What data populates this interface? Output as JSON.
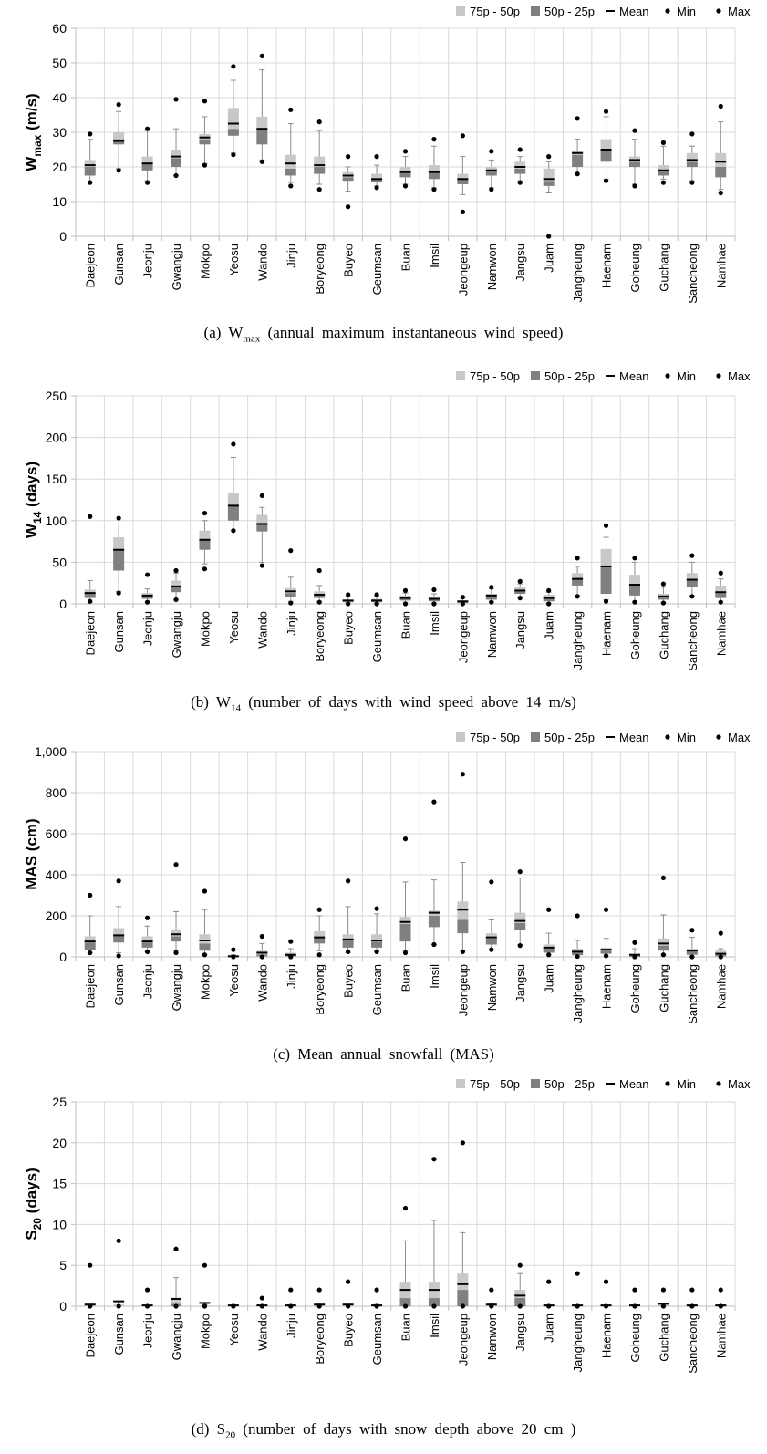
{
  "legend_labels": [
    "75p - 50p",
    "50p - 25p",
    "Mean",
    "Min",
    "Max"
  ],
  "colors": {
    "upper_box": "#c8c8c8",
    "lower_box": "#808080",
    "mean": "#000000",
    "marker": "#000000",
    "grid": "#d9d9d9",
    "axis": "#bfbfbf"
  },
  "chart_data": [
    {
      "type": "box",
      "ylabel_main": "W",
      "ylabel_sub": "max",
      "ylabel_tail": " (m/s)",
      "ylim": [
        0,
        60
      ],
      "yticks": [
        "0",
        "10",
        "20",
        "30",
        "40",
        "50",
        "60"
      ],
      "caption_prefix": "(a)  W",
      "caption_sub": "max",
      "caption_rest": " (annual maximum instantaneous wind speed)",
      "categories": [
        "Daejeon",
        "Gunsan",
        "Jeonju",
        "Gwangju",
        "Mokpo",
        "Yeosu",
        "Wando",
        "Jinju",
        "Boryeong",
        "Buyeo",
        "Geumsan",
        "Buan",
        "Imsil",
        "Jeongeup",
        "Namwon",
        "Jangsu",
        "Juam",
        "Jangheung",
        "Haenam",
        "Goheung",
        "Guchang",
        "Sancheong",
        "Namhae"
      ],
      "q1": [
        17.5,
        26.5,
        19,
        20,
        26.5,
        29,
        26.5,
        17.5,
        18,
        16,
        15.5,
        17,
        16.5,
        15,
        17.5,
        18,
        14.5,
        20,
        21.5,
        20,
        17.5,
        20,
        17
      ],
      "median": [
        20,
        28,
        21,
        22.5,
        28,
        31,
        31,
        19.5,
        20,
        17,
        16.5,
        18.5,
        18.5,
        16.5,
        19,
        19.5,
        16,
        23.5,
        25,
        21.5,
        19,
        21.5,
        20
      ],
      "q3": [
        22,
        30,
        23,
        25,
        29.5,
        37,
        34.5,
        23.5,
        23,
        18.5,
        18,
        20,
        20.5,
        18,
        20,
        21.5,
        19.5,
        24.5,
        28,
        23,
        20.5,
        24,
        24
      ],
      "whisker_low": [
        15.5,
        19.5,
        16,
        17.5,
        21,
        24,
        22,
        15.5,
        15,
        13,
        14.5,
        15,
        14,
        12,
        14,
        16,
        12.5,
        18,
        16.5,
        15,
        16.5,
        16,
        13.5
      ],
      "whisker_high": [
        28,
        36,
        30.5,
        31,
        34.5,
        45,
        48,
        32.5,
        30.5,
        20,
        20.5,
        23,
        26,
        23,
        22,
        23,
        21.5,
        28,
        34.5,
        28,
        26,
        26,
        33
      ],
      "mean": [
        20.5,
        27.5,
        21,
        23,
        28.5,
        32.5,
        31,
        21,
        20.5,
        17.5,
        16.5,
        18.5,
        18.5,
        16.5,
        19,
        20,
        16.5,
        24,
        25,
        22,
        19,
        22,
        21.5
      ],
      "min": [
        15.5,
        19,
        15.5,
        17.5,
        20.5,
        23.5,
        21.5,
        14.5,
        13.5,
        8.5,
        14,
        14.5,
        13.5,
        7,
        13.5,
        15.5,
        0,
        18,
        16,
        14.5,
        15.5,
        15.5,
        12.5
      ],
      "max": [
        29.5,
        38,
        31,
        39.5,
        39,
        49,
        52,
        36.5,
        33,
        23,
        23,
        24.5,
        28,
        29,
        24.5,
        25,
        23,
        34,
        36,
        30.5,
        27,
        29.5,
        37.5
      ]
    },
    {
      "type": "box",
      "ylabel_main": "W",
      "ylabel_sub": "14",
      "ylabel_tail": " (days)",
      "ylim": [
        0,
        250
      ],
      "yticks": [
        "0",
        "50",
        "100",
        "150",
        "200",
        "250"
      ],
      "caption_prefix": "(b)  W",
      "caption_sub": "14",
      "caption_rest": " (number of days with wind speed above 14 m/s)",
      "categories": [
        "Daejeon",
        "Gunsan",
        "Jeonju",
        "Gwangju",
        "Mokpo",
        "Yeosu",
        "Wando",
        "Jinju",
        "Boryeong",
        "Buyeo",
        "Geumsan",
        "Buan",
        "Imsil",
        "Jeongeup",
        "Namwon",
        "Jangsu",
        "Juam",
        "Jangheung",
        "Haenam",
        "Goheung",
        "Guchang",
        "Sancheong",
        "Namhae"
      ],
      "q1": [
        7,
        40,
        6,
        14,
        65,
        100,
        87,
        8,
        7,
        2,
        2,
        4,
        3,
        1,
        5,
        12,
        3,
        22,
        12,
        10,
        5,
        20,
        7
      ],
      "median": [
        12,
        65,
        10,
        20,
        78,
        118,
        97,
        13,
        10,
        3,
        3,
        6,
        5,
        2,
        8,
        16,
        7,
        30,
        45,
        22,
        8,
        30,
        13
      ],
      "q3": [
        17,
        80,
        13,
        28,
        88,
        133,
        107,
        19,
        15,
        5,
        6,
        10,
        9,
        4,
        12,
        20,
        11,
        37,
        66,
        35,
        12,
        37,
        22
      ],
      "whisker_low": [
        2,
        15,
        3,
        5,
        48,
        88,
        50,
        3,
        3,
        1,
        1,
        2,
        1,
        0,
        3,
        8,
        1,
        10,
        5,
        3,
        2,
        10,
        3
      ],
      "whisker_high": [
        28,
        96,
        18,
        37,
        100,
        176,
        116,
        32,
        22,
        9,
        9,
        13,
        12,
        7,
        18,
        24,
        14,
        45,
        80,
        50,
        20,
        50,
        30
      ],
      "mean": [
        13,
        65,
        10,
        21,
        77,
        118,
        96,
        15,
        11,
        4,
        4,
        7,
        6,
        3,
        10,
        16,
        7,
        30,
        45,
        23,
        9,
        29,
        14
      ],
      "min": [
        3,
        13,
        2,
        5,
        42,
        88,
        46,
        1,
        2,
        0,
        0,
        0,
        0,
        0,
        2,
        7,
        0,
        9,
        3,
        2,
        1,
        9,
        2
      ],
      "max": [
        105,
        103,
        35,
        40,
        109,
        192,
        130,
        64,
        40,
        11,
        11,
        16,
        17,
        8,
        20,
        27,
        16,
        55,
        94,
        55,
        24,
        58,
        37
      ]
    },
    {
      "type": "box",
      "ylabel_main": "MAS",
      "ylabel_sub": "",
      "ylabel_tail": " (cm)",
      "ylim": [
        0,
        1000
      ],
      "yticks": [
        "0",
        "200",
        "400",
        "600",
        "800",
        "1,000"
      ],
      "caption_prefix": "(c)  Mean annual snowfall (MAS)",
      "caption_sub": "",
      "caption_rest": "",
      "categories": [
        "Daejeon",
        "Gunsan",
        "Jeonju",
        "Gwangju",
        "Mokpo",
        "Yeosu",
        "Wando",
        "Jinju",
        "Boryeong",
        "Buyeo",
        "Geumsan",
        "Buan",
        "Imsil",
        "Jeongeup",
        "Namwon",
        "Jangsu",
        "Juam",
        "Jangheung",
        "Haenam",
        "Goheung",
        "Guchang",
        "Sancheong",
        "Namhae"
      ],
      "q1": [
        35,
        70,
        45,
        75,
        30,
        0,
        3,
        3,
        65,
        45,
        45,
        75,
        145,
        115,
        60,
        130,
        20,
        8,
        15,
        0,
        30,
        10,
        3
      ],
      "median": [
        70,
        105,
        70,
        100,
        65,
        2,
        12,
        8,
        95,
        80,
        75,
        160,
        200,
        180,
        90,
        165,
        40,
        20,
        30,
        5,
        55,
        25,
        10
      ],
      "q3": [
        100,
        140,
        100,
        135,
        110,
        5,
        30,
        20,
        125,
        110,
        110,
        195,
        225,
        270,
        115,
        215,
        60,
        40,
        45,
        15,
        90,
        40,
        30
      ],
      "whisker_low": [
        20,
        20,
        25,
        30,
        10,
        0,
        0,
        0,
        30,
        20,
        25,
        30,
        60,
        30,
        35,
        60,
        10,
        0,
        5,
        0,
        10,
        0,
        0
      ],
      "whisker_high": [
        200,
        245,
        150,
        220,
        230,
        10,
        65,
        40,
        200,
        245,
        210,
        365,
        375,
        460,
        180,
        385,
        115,
        80,
        90,
        40,
        205,
        95,
        40
      ],
      "mean": [
        75,
        105,
        75,
        110,
        80,
        3,
        20,
        10,
        95,
        85,
        80,
        170,
        215,
        230,
        95,
        175,
        45,
        25,
        35,
        10,
        65,
        30,
        15
      ],
      "min": [
        20,
        5,
        25,
        20,
        10,
        0,
        0,
        0,
        10,
        25,
        25,
        20,
        60,
        25,
        35,
        55,
        10,
        2,
        5,
        0,
        10,
        0,
        0
      ],
      "max": [
        300,
        370,
        190,
        450,
        320,
        35,
        100,
        75,
        230,
        370,
        235,
        575,
        755,
        890,
        365,
        415,
        230,
        200,
        230,
        70,
        385,
        130,
        115
      ]
    },
    {
      "type": "box",
      "ylabel_main": "S",
      "ylabel_sub": "20",
      "ylabel_tail": " (days)",
      "ylim": [
        0,
        25
      ],
      "yticks": [
        "0",
        "5",
        "10",
        "15",
        "20",
        "25"
      ],
      "caption_prefix": "(d)  S",
      "caption_sub": "20",
      "caption_rest": " (number of days with snow depth above 20 cm )",
      "categories": [
        "Daejeon",
        "Gunsan",
        "Jeonju",
        "Gwangju",
        "Mokpo",
        "Yeosu",
        "Wando",
        "Jinju",
        "Boryeong",
        "Buyeo",
        "Geumsan",
        "Buan",
        "Imsil",
        "Jeongeup",
        "Namwon",
        "Jangsu",
        "Juam",
        "Jangheung",
        "Haenam",
        "Goheung",
        "Guchang",
        "Sancheong",
        "Namhae"
      ],
      "q1": [
        0,
        0,
        0,
        0,
        0,
        0,
        0,
        0,
        0,
        0,
        0,
        0,
        0,
        0,
        0,
        0,
        0,
        0,
        0,
        0,
        0,
        0,
        0
      ],
      "median": [
        0,
        0,
        0,
        0.3,
        0,
        0,
        0,
        0,
        0,
        0,
        0,
        1,
        1,
        2,
        0,
        1,
        0,
        0,
        0,
        0,
        0,
        0,
        0
      ],
      "q3": [
        0.1,
        0.2,
        0.1,
        1,
        0.1,
        0,
        0,
        0,
        0.1,
        0.1,
        0.1,
        3,
        3,
        4,
        0.1,
        2,
        0,
        0,
        0,
        0,
        0.2,
        0,
        0
      ],
      "whisker_low": [
        0,
        0,
        0,
        0,
        0,
        0,
        0,
        0,
        0,
        0,
        0,
        0,
        0,
        0,
        0,
        0,
        0,
        0,
        0,
        0,
        0,
        0,
        0
      ],
      "whisker_high": [
        0.1,
        0.6,
        0.1,
        3.5,
        0.2,
        0,
        0,
        0,
        0.2,
        0.2,
        0.2,
        8,
        10.5,
        9,
        0.3,
        4,
        0,
        0,
        0,
        0,
        0.3,
        0,
        0
      ],
      "mean": [
        0.2,
        0.6,
        0.1,
        0.9,
        0.4,
        0.1,
        0.1,
        0.1,
        0.2,
        0.2,
        0.1,
        2,
        2,
        2.7,
        0.2,
        1.3,
        0.1,
        0.1,
        0.1,
        0.1,
        0.3,
        0.1,
        0.1
      ],
      "min": [
        0,
        0,
        0,
        0,
        0,
        0,
        0,
        0,
        0,
        0,
        0,
        0,
        0,
        0,
        0,
        0,
        0,
        0,
        0,
        0,
        0,
        0,
        0
      ],
      "max": [
        5,
        8,
        2,
        7,
        5,
        0,
        1,
        2,
        2,
        3,
        2,
        12,
        18,
        20,
        2,
        5,
        3,
        4,
        3,
        2,
        2,
        2,
        2
      ]
    }
  ]
}
